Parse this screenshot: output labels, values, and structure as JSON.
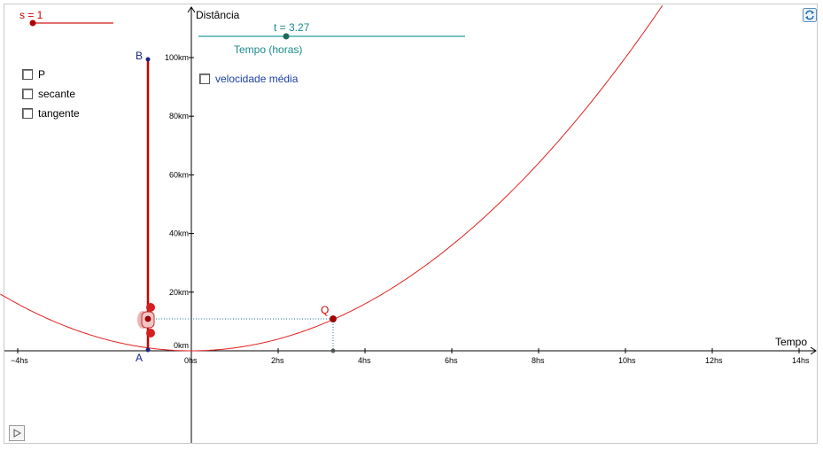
{
  "slider_s": {
    "label": "s = 1",
    "value": 1,
    "color": "#cc0000"
  },
  "slider_t": {
    "label": "t = 3.27",
    "value": 3.27,
    "min": 0,
    "max": 6.3,
    "caption": "Tempo (horas)",
    "color": "#1a9a9a"
  },
  "checkboxes": [
    {
      "label": "P",
      "checked": false
    },
    {
      "label": "secante",
      "checked": false
    },
    {
      "label": "tangente",
      "checked": false
    },
    {
      "label": "velocidade média",
      "checked": false
    }
  ],
  "axes": {
    "x_label": "Tempo",
    "y_label": "Distância",
    "x_ticks": [
      "−4hs",
      "0hs",
      "2hs",
      "4hs",
      "6hs",
      "8hs",
      "10hs",
      "12hs",
      "14hs"
    ],
    "y_ticks": [
      "0km",
      "20km",
      "40km",
      "60km",
      "80km",
      "100km"
    ]
  },
  "points": {
    "A": "A",
    "B": "B",
    "Q": "Q"
  },
  "curve": {
    "function": "y = x^2",
    "color": "#e02020"
  },
  "icons": {
    "play": "play-icon",
    "reset": "reset-icon",
    "car": "car-icon"
  }
}
